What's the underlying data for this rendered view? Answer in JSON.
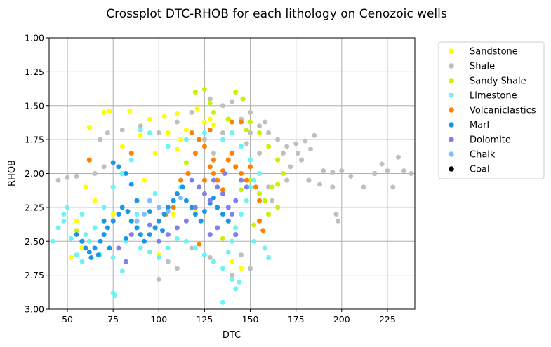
{
  "chart_data": {
    "type": "scatter",
    "title": "Crossplot DTC-RHOB for each lithology on Cenozoic wells",
    "xlabel": "DTC",
    "ylabel": "RHOB",
    "xlim": [
      40,
      240
    ],
    "ylim": [
      3.0,
      1.0
    ],
    "y_inverted": true,
    "xticks": [
      50,
      75,
      100,
      125,
      150,
      175,
      200,
      225
    ],
    "yticks": [
      1.0,
      1.25,
      1.5,
      1.75,
      2.0,
      2.25,
      2.5,
      2.75,
      3.0
    ],
    "xtick_labels": [
      "50",
      "75",
      "100",
      "125",
      "150",
      "175",
      "200",
      "225"
    ],
    "ytick_labels": [
      "1.00",
      "1.25",
      "1.50",
      "1.75",
      "2.00",
      "2.25",
      "2.50",
      "2.75",
      "3.00"
    ],
    "grid": true,
    "legend_position": "outside-right-top",
    "series": [
      {
        "name": "Sandstone",
        "color": "#ffff00",
        "points": [
          [
            70,
            1.55
          ],
          [
            73,
            1.54
          ],
          [
            84,
            1.54
          ],
          [
            95,
            1.6
          ],
          [
            103,
            1.58
          ],
          [
            110,
            1.56
          ],
          [
            118,
            1.55
          ],
          [
            121,
            1.52
          ],
          [
            62,
            1.66
          ],
          [
            90,
            1.72
          ],
          [
            105,
            1.7
          ],
          [
            115,
            1.68
          ],
          [
            125,
            1.62
          ],
          [
            130,
            1.64
          ],
          [
            80,
            1.8
          ],
          [
            98,
            1.85
          ],
          [
            110,
            1.82
          ],
          [
            60,
            2.1
          ],
          [
            65,
            2.2
          ],
          [
            55,
            2.35
          ],
          [
            52,
            2.62
          ],
          [
            58,
            2.55
          ],
          [
            108,
            2.3
          ],
          [
            120,
            2.28
          ],
          [
            140,
            2.65
          ],
          [
            145,
            2.7
          ],
          [
            100,
            2.6
          ],
          [
            85,
            2.45
          ],
          [
            128,
            1.6
          ],
          [
            112,
            1.75
          ],
          [
            75,
            2.3
          ],
          [
            92,
            2.05
          ]
        ]
      },
      {
        "name": "Shale",
        "color": "#bfbfbf",
        "points": [
          [
            45,
            2.05
          ],
          [
            50,
            2.03
          ],
          [
            55,
            2.02
          ],
          [
            65,
            2.0
          ],
          [
            70,
            1.95
          ],
          [
            68,
            1.75
          ],
          [
            72,
            1.7
          ],
          [
            80,
            1.68
          ],
          [
            90,
            1.65
          ],
          [
            100,
            1.7
          ],
          [
            110,
            1.62
          ],
          [
            118,
            1.55
          ],
          [
            128,
            1.45
          ],
          [
            135,
            1.5
          ],
          [
            140,
            1.47
          ],
          [
            145,
            1.6
          ],
          [
            150,
            1.55
          ],
          [
            155,
            1.65
          ],
          [
            160,
            1.7
          ],
          [
            165,
            1.75
          ],
          [
            170,
            1.8
          ],
          [
            175,
            1.78
          ],
          [
            180,
            1.76
          ],
          [
            185,
            1.72
          ],
          [
            190,
            1.98
          ],
          [
            195,
            1.99
          ],
          [
            200,
            1.98
          ],
          [
            205,
            2.02
          ],
          [
            212,
            2.1
          ],
          [
            218,
            2.0
          ],
          [
            222,
            1.93
          ],
          [
            225,
            1.98
          ],
          [
            228,
            2.1
          ],
          [
            231,
            1.88
          ],
          [
            234,
            1.98
          ],
          [
            238,
            2.0
          ],
          [
            182,
            2.05
          ],
          [
            188,
            2.08
          ],
          [
            195,
            2.1
          ],
          [
            197,
            2.3
          ],
          [
            198,
            2.35
          ],
          [
            170,
            2.05
          ],
          [
            160,
            2.1
          ],
          [
            162,
            2.2
          ],
          [
            150,
            1.7
          ],
          [
            145,
            1.8
          ],
          [
            155,
            1.85
          ],
          [
            165,
            1.9
          ],
          [
            172,
            1.95
          ],
          [
            178,
            1.9
          ],
          [
            135,
            1.7
          ],
          [
            125,
            1.75
          ],
          [
            130,
            1.85
          ],
          [
            145,
            2.6
          ],
          [
            150,
            2.7
          ],
          [
            140,
            2.75
          ],
          [
            118,
            2.55
          ],
          [
            105,
            2.65
          ],
          [
            100,
            2.78
          ],
          [
            110,
            2.7
          ],
          [
            128,
            2.62
          ],
          [
            138,
            1.6
          ],
          [
            148,
            1.78
          ],
          [
            168,
            1.85
          ],
          [
            176,
            1.85
          ],
          [
            183,
            1.82
          ],
          [
            158,
            1.62
          ]
        ]
      },
      {
        "name": "Sandy Shale",
        "color": "#c8f200",
        "points": [
          [
            120,
            1.4
          ],
          [
            125,
            1.38
          ],
          [
            142,
            1.4
          ],
          [
            146,
            1.45
          ],
          [
            130,
            1.55
          ],
          [
            138,
            1.6
          ],
          [
            150,
            1.62
          ],
          [
            155,
            1.7
          ],
          [
            160,
            1.8
          ],
          [
            165,
            1.9
          ],
          [
            168,
            2.0
          ],
          [
            162,
            2.1
          ],
          [
            158,
            2.2
          ],
          [
            165,
            2.25
          ],
          [
            160,
            2.3
          ],
          [
            150,
            2.05
          ],
          [
            145,
            2.12
          ],
          [
            55,
            2.42
          ],
          [
            140,
            2.5
          ],
          [
            135,
            2.48
          ],
          [
            155,
            2.15
          ],
          [
            148,
            1.68
          ],
          [
            128,
            1.48
          ],
          [
            115,
            1.92
          ],
          [
            165,
            2.08
          ],
          [
            152,
            2.38
          ]
        ]
      },
      {
        "name": "Limestone",
        "color": "#6ff2f2",
        "points": [
          [
            42,
            2.5
          ],
          [
            45,
            2.4
          ],
          [
            48,
            2.3
          ],
          [
            50,
            2.25
          ],
          [
            52,
            2.48
          ],
          [
            55,
            2.6
          ],
          [
            58,
            2.65
          ],
          [
            62,
            2.5
          ],
          [
            68,
            2.6
          ],
          [
            75,
            2.62
          ],
          [
            80,
            2.72
          ],
          [
            82,
            2.5
          ],
          [
            90,
            2.55
          ],
          [
            95,
            2.58
          ],
          [
            100,
            2.62
          ],
          [
            105,
            2.55
          ],
          [
            110,
            2.48
          ],
          [
            115,
            2.5
          ],
          [
            120,
            2.55
          ],
          [
            125,
            2.6
          ],
          [
            130,
            2.65
          ],
          [
            135,
            2.7
          ],
          [
            138,
            2.58
          ],
          [
            140,
            2.5
          ],
          [
            142,
            2.4
          ],
          [
            145,
            2.3
          ],
          [
            148,
            2.2
          ],
          [
            150,
            2.1
          ],
          [
            152,
            2.05
          ],
          [
            155,
            2.0
          ],
          [
            150,
            1.9
          ],
          [
            145,
            1.8
          ],
          [
            140,
            1.7
          ],
          [
            135,
            1.75
          ],
          [
            125,
            1.7
          ],
          [
            115,
            1.75
          ],
          [
            105,
            1.8
          ],
          [
            95,
            1.7
          ],
          [
            90,
            1.68
          ],
          [
            85,
            1.9
          ],
          [
            80,
            2.0
          ],
          [
            75,
            2.1
          ],
          [
            70,
            2.25
          ],
          [
            65,
            2.4
          ],
          [
            60,
            2.45
          ],
          [
            75,
            2.88
          ],
          [
            76,
            2.9
          ],
          [
            135,
            2.95
          ],
          [
            142,
            2.85
          ],
          [
            144,
            2.8
          ],
          [
            140,
            2.78
          ],
          [
            160,
            2.62
          ],
          [
            158,
            2.55
          ],
          [
            152,
            2.5
          ],
          [
            128,
            2.2
          ],
          [
            112,
            2.1
          ],
          [
            98,
            2.15
          ],
          [
            88,
            2.3
          ],
          [
            58,
            2.3
          ],
          [
            48,
            2.35
          ]
        ]
      },
      {
        "name": "Volcaniclastics",
        "color": "#ff8000",
        "points": [
          [
            118,
            1.7
          ],
          [
            122,
            1.75
          ],
          [
            125,
            1.8
          ],
          [
            128,
            1.95
          ],
          [
            130,
            2.0
          ],
          [
            132,
            2.05
          ],
          [
            135,
            1.98
          ],
          [
            138,
            1.9
          ],
          [
            140,
            1.85
          ],
          [
            142,
            1.95
          ],
          [
            145,
            2.0
          ],
          [
            148,
            2.05
          ],
          [
            150,
            1.95
          ],
          [
            153,
            2.1
          ],
          [
            155,
            2.2
          ],
          [
            145,
            1.62
          ],
          [
            140,
            1.62
          ],
          [
            112,
            2.05
          ],
          [
            108,
            2.25
          ],
          [
            104,
            2.3
          ],
          [
            98,
            2.4
          ],
          [
            85,
            1.85
          ],
          [
            62,
            1.9
          ],
          [
            120,
            1.85
          ],
          [
            130,
            1.9
          ],
          [
            155,
            2.35
          ],
          [
            157,
            2.42
          ],
          [
            122,
            2.52
          ],
          [
            135,
            2.12
          ],
          [
            125,
            2.05
          ],
          [
            128,
            1.68
          ],
          [
            116,
            2.0
          ]
        ]
      },
      {
        "name": "Marl",
        "color": "#1a96e6",
        "points": [
          [
            55,
            2.45
          ],
          [
            58,
            2.5
          ],
          [
            60,
            2.55
          ],
          [
            62,
            2.58
          ],
          [
            65,
            2.55
          ],
          [
            68,
            2.5
          ],
          [
            70,
            2.45
          ],
          [
            72,
            2.4
          ],
          [
            75,
            2.35
          ],
          [
            78,
            2.3
          ],
          [
            80,
            2.25
          ],
          [
            83,
            2.28
          ],
          [
            85,
            2.35
          ],
          [
            88,
            2.4
          ],
          [
            90,
            2.45
          ],
          [
            92,
            2.5
          ],
          [
            95,
            2.45
          ],
          [
            98,
            2.4
          ],
          [
            100,
            2.35
          ],
          [
            103,
            2.3
          ],
          [
            105,
            2.25
          ],
          [
            108,
            2.2
          ],
          [
            110,
            2.15
          ],
          [
            113,
            2.1
          ],
          [
            115,
            2.2
          ],
          [
            118,
            2.25
          ],
          [
            120,
            2.3
          ],
          [
            123,
            2.35
          ],
          [
            125,
            2.28
          ],
          [
            128,
            2.22
          ],
          [
            130,
            2.18
          ],
          [
            132,
            2.25
          ],
          [
            135,
            2.3
          ],
          [
            138,
            2.35
          ],
          [
            75,
            1.92
          ],
          [
            78,
            1.95
          ],
          [
            82,
            2.0
          ],
          [
            85,
            2.08
          ],
          [
            63,
            2.62
          ],
          [
            67,
            2.6
          ],
          [
            73,
            2.55
          ],
          [
            82,
            2.48
          ],
          [
            95,
            2.28
          ],
          [
            70,
            2.35
          ],
          [
            88,
            2.2
          ],
          [
            102,
            2.42
          ]
        ]
      },
      {
        "name": "Dolomite",
        "color": "#8080ee",
        "points": [
          [
            118,
            2.05
          ],
          [
            122,
            2.1
          ],
          [
            125,
            2.15
          ],
          [
            128,
            2.2
          ],
          [
            130,
            2.05
          ],
          [
            132,
            2.1
          ],
          [
            135,
            2.15
          ],
          [
            138,
            2.25
          ],
          [
            140,
            2.3
          ],
          [
            142,
            2.2
          ],
          [
            145,
            2.05
          ],
          [
            148,
            2.1
          ],
          [
            132,
            2.4
          ],
          [
            128,
            2.45
          ],
          [
            115,
            2.35
          ],
          [
            110,
            2.4
          ],
          [
            105,
            2.45
          ],
          [
            100,
            2.5
          ],
          [
            95,
            2.38
          ],
          [
            85,
            2.45
          ],
          [
            82,
            2.65
          ],
          [
            78,
            2.55
          ],
          [
            136,
            2.0
          ],
          [
            142,
            2.45
          ],
          [
            120,
            2.25
          ]
        ]
      },
      {
        "name": "Chalk",
        "color": "#7fbfff",
        "points": [
          [
            95,
            2.2
          ],
          [
            100,
            2.25
          ],
          [
            105,
            2.28
          ],
          [
            88,
            2.35
          ],
          [
            112,
            2.18
          ],
          [
            92,
            2.3
          ]
        ]
      },
      {
        "name": "Coal",
        "color": "#000000",
        "points": []
      }
    ]
  }
}
